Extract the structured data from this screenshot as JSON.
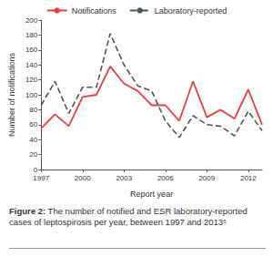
{
  "chart_data": {
    "type": "line",
    "y_label": "Number of notifications",
    "x_label": "Report year",
    "caption_label": "Figure 2:",
    "caption": "The number of notified and ESR laboratory-reported cases of leptospirosis per year, between 1997 and 2013⁵",
    "categories": [
      "1997",
      null,
      null,
      "2000",
      null,
      null,
      "2003",
      null,
      null,
      "2006",
      null,
      null,
      "2009",
      null,
      null,
      "2012",
      null
    ],
    "series": [
      {
        "name": "Notifications",
        "color": "#e8403a",
        "line_style": "solid",
        "values": [
          55,
          74,
          58,
          97,
          100,
          138,
          115,
          105,
          86,
          86,
          65,
          118,
          70,
          80,
          68,
          107,
          60
        ]
      },
      {
        "name": "Laboratory-reported",
        "color": "#4a5a50",
        "line_style": "dashed",
        "values": [
          86,
          118,
          75,
          110,
          110,
          182,
          140,
          112,
          105,
          65,
          43,
          72,
          60,
          58,
          45,
          78,
          52
        ]
      }
    ],
    "ylim": [
      0,
      200
    ],
    "yticks": [
      0,
      20,
      40,
      60,
      80,
      100,
      120,
      140,
      160,
      180,
      200
    ],
    "grid": false,
    "legend": "top"
  }
}
